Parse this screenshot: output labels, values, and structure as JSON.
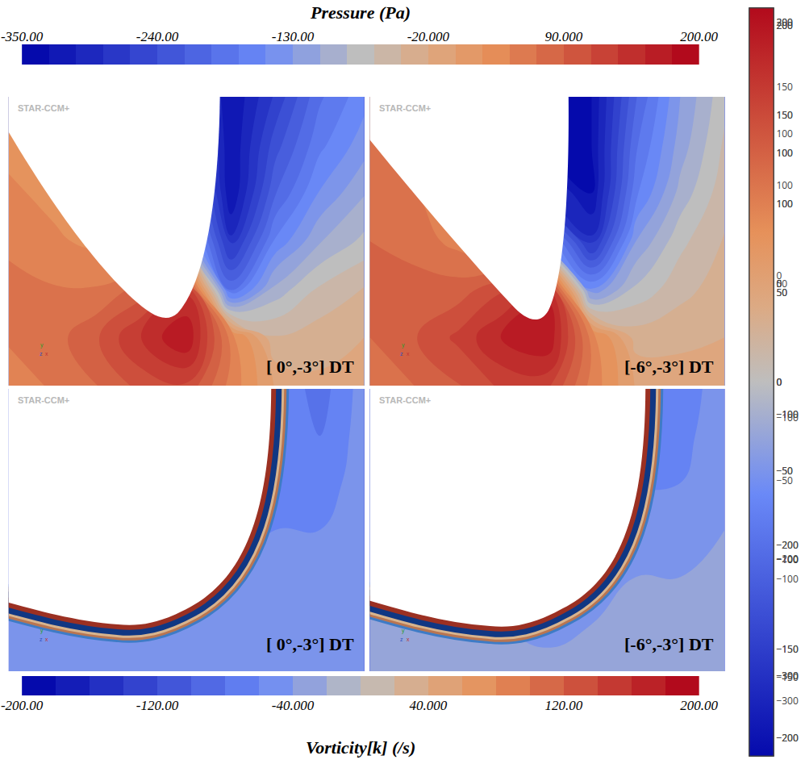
{
  "chart_data": [
    {
      "type": "contour",
      "title": "Pressure (Pa)",
      "colorbar": {
        "range": [
          -350,
          200
        ],
        "ticks": [
          {
            "value": -350,
            "label": "-350.00"
          },
          {
            "value": -240,
            "label": "-240.00"
          },
          {
            "value": -130,
            "label": "-130.00"
          },
          {
            "value": -20,
            "label": "-20.000"
          },
          {
            "value": 90,
            "label": "90.000"
          },
          {
            "value": 200,
            "label": "200.00"
          }
        ]
      },
      "panels": [
        {
          "label": "[ 0°,-3°] DT",
          "z": [
            [
              30,
              20,
              0,
              -100,
              -250,
              -350,
              -280,
              -200,
              -160
            ],
            [
              40,
              30,
              10,
              -50,
              -200,
              -350,
              -250,
              -180,
              -140
            ],
            [
              50,
              40,
              20,
              -20,
              -150,
              -350,
              -220,
              -150,
              -110
            ],
            [
              60,
              50,
              40,
              10,
              -100,
              -300,
              -170,
              -110,
              -80
            ],
            [
              80,
              70,
              70,
              100,
              150,
              -200,
              -100,
              -60,
              -40
            ],
            [
              70,
              80,
              110,
              160,
              200,
              60,
              -40,
              -30,
              -20
            ],
            [
              60,
              70,
              90,
              120,
              130,
              60,
              0,
              -15,
              -10
            ]
          ]
        },
        {
          "label": "[-6°,-3°] DT",
          "z": [
            [
              60,
              40,
              0,
              -150,
              -350,
              -350,
              -220,
              -130,
              -70
            ],
            [
              70,
              50,
              20,
              -100,
              -350,
              -350,
              -200,
              -120,
              -60
            ],
            [
              80,
              70,
              40,
              -50,
              -300,
              -350,
              -180,
              -100,
              -50
            ],
            [
              90,
              80,
              60,
              20,
              -150,
              -300,
              -130,
              -70,
              -40
            ],
            [
              100,
              100,
              100,
              130,
              170,
              -150,
              -80,
              -50,
              -30
            ],
            [
              90,
              110,
              140,
              180,
              200,
              60,
              -30,
              -25,
              -20
            ],
            [
              80,
              90,
              110,
              140,
              140,
              60,
              0,
              -10,
              -10
            ]
          ]
        }
      ]
    },
    {
      "type": "contour",
      "title": "Vorticity[k] (/s)",
      "colorbar": {
        "range": [
          -200,
          200
        ],
        "ticks": [
          {
            "value": -200,
            "label": "-200.00"
          },
          {
            "value": -120,
            "label": "-120.00"
          },
          {
            "value": -40,
            "label": "-40.000"
          },
          {
            "value": 40,
            "label": "40.000"
          },
          {
            "value": 120,
            "label": "120.00"
          },
          {
            "value": 200,
            "label": "200.00"
          }
        ]
      },
      "panels": [
        {
          "label": "[ 0°,-3°] DT",
          "layers": [
            200,
            -200,
            60,
            120,
            -120
          ],
          "z": [
            [
              -40,
              -40,
              -40,
              -40,
              -40,
              -40,
              -60,
              -90,
              -50
            ],
            [
              -40,
              -40,
              -40,
              -40,
              -40,
              -40,
              -60,
              -80,
              -50
            ],
            [
              -40,
              -40,
              -40,
              -40,
              -40,
              -50,
              -70,
              -70,
              -50
            ],
            [
              -40,
              -40,
              -40,
              -40,
              -40,
              -60,
              -60,
              -60,
              -50
            ],
            [
              -40,
              -40,
              -40,
              -40,
              -60,
              -60,
              -50,
              -50,
              -40
            ],
            [
              -40,
              -40,
              -40,
              -50,
              -60,
              -50,
              -40,
              -40,
              -40
            ],
            [
              -40,
              -40,
              -40,
              -40,
              -40,
              -40,
              -40,
              -40,
              -40
            ]
          ]
        },
        {
          "label": "[-6°,-3°] DT",
          "layers": [
            200,
            -200,
            60,
            120,
            -120
          ],
          "z": [
            [
              -40,
              -40,
              -40,
              -40,
              -40,
              -40,
              -40,
              -80,
              -40
            ],
            [
              -40,
              -40,
              -40,
              -40,
              -40,
              -40,
              -50,
              -70,
              -40
            ],
            [
              -40,
              -40,
              -40,
              -40,
              -40,
              -40,
              -60,
              -60,
              -40
            ],
            [
              -40,
              -40,
              -40,
              -40,
              -40,
              -60,
              -50,
              -50,
              -40
            ],
            [
              -40,
              -40,
              -40,
              -40,
              -50,
              -50,
              -40,
              -40,
              -30
            ],
            [
              -30,
              -30,
              -30,
              -40,
              -50,
              -40,
              -30,
              -30,
              -30
            ],
            [
              -30,
              -30,
              -30,
              -30,
              -30,
              -30,
              -30,
              -30,
              -30
            ]
          ]
        }
      ]
    }
  ],
  "watermark": "STAR-CCM+",
  "triad": [
    "y",
    "z",
    "x"
  ]
}
